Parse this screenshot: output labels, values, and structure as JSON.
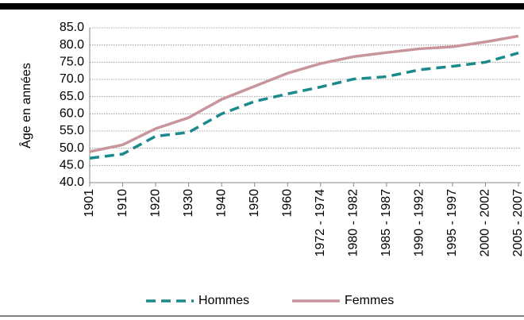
{
  "chart_data": {
    "type": "line",
    "y_label": "Âge en années",
    "categories": [
      "1901",
      "1910",
      "1920",
      "1930",
      "1940",
      "1950",
      "1960",
      "1972 - 1974",
      "1980 - 1982",
      "1985 - 1987",
      "1990 - 1992",
      "1995 - 1997",
      "2000 - 2002",
      "2005 - 2007"
    ],
    "series": [
      {
        "name": "Hommes",
        "color": "#1b8a8c",
        "dashed": true,
        "values": [
          47.1,
          48.3,
          53.5,
          54.6,
          60.0,
          63.6,
          65.8,
          67.8,
          70.1,
          70.8,
          72.8,
          73.8,
          75.0,
          77.7
        ]
      },
      {
        "name": "Femmes",
        "color": "#c9959d",
        "dashed": false,
        "values": [
          49.0,
          51.0,
          55.7,
          58.9,
          64.2,
          68.0,
          71.8,
          74.6,
          76.6,
          77.8,
          78.9,
          79.5,
          80.9,
          82.6
        ]
      }
    ],
    "ylim": [
      40,
      85
    ],
    "yticks": [
      {
        "value": 40,
        "label": "40.0"
      },
      {
        "value": 45,
        "label": "45.0"
      },
      {
        "value": 50,
        "label": "50.0"
      },
      {
        "value": 55,
        "label": "55.0"
      },
      {
        "value": 60,
        "label": "60.0"
      },
      {
        "value": 65,
        "label": "65.0"
      },
      {
        "value": 70,
        "label": "70.0"
      },
      {
        "value": 75,
        "label": "75.0"
      },
      {
        "value": 80,
        "label": "80.0"
      },
      {
        "value": 85,
        "label": "85.0"
      }
    ],
    "grid": true,
    "legend": "bottom"
  }
}
